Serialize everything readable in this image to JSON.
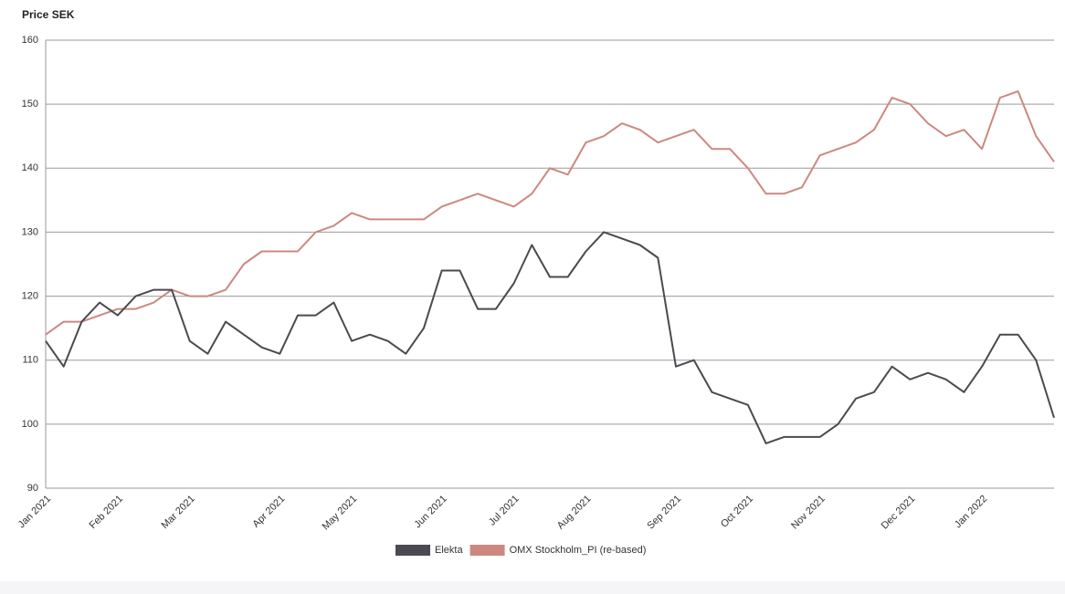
{
  "chart_data": {
    "type": "line",
    "y_axis_title": "Price SEK",
    "categories": [
      "Jan 2021",
      null,
      null,
      null,
      "Feb 2021",
      null,
      null,
      null,
      "Mar 2021",
      null,
      null,
      null,
      null,
      "Apr 2021",
      null,
      null,
      null,
      "May 2021",
      null,
      null,
      null,
      null,
      "Jun 2021",
      null,
      null,
      null,
      "Jul 2021",
      null,
      null,
      null,
      "Aug 2021",
      null,
      null,
      null,
      null,
      "Sep 2021",
      null,
      null,
      null,
      "Oct 2021",
      null,
      null,
      null,
      "Nov 2021",
      null,
      null,
      null,
      null,
      "Dec 2021",
      null,
      null,
      null,
      "Jan 2022",
      null,
      null,
      null,
      null
    ],
    "series": [
      {
        "name": "Elekta",
        "color": "#4a4a50",
        "values": [
          113,
          109,
          116,
          119,
          117,
          120,
          121,
          121,
          113,
          111,
          116,
          114,
          112,
          111,
          117,
          117,
          119,
          113,
          114,
          113,
          111,
          115,
          124,
          124,
          118,
          118,
          122,
          128,
          123,
          123,
          127,
          130,
          129,
          128,
          126,
          109,
          110,
          105,
          104,
          103,
          97,
          98,
          98,
          98,
          100,
          104,
          105,
          109,
          107,
          108,
          107,
          105,
          109,
          114,
          114,
          110,
          101
        ]
      },
      {
        "name": "OMX Stockholm_PI (re-based)",
        "color": "#cc8880",
        "values": [
          114,
          116,
          116,
          117,
          118,
          118,
          119,
          121,
          120,
          120,
          121,
          125,
          127,
          127,
          127,
          130,
          131,
          133,
          132,
          132,
          132,
          132,
          134,
          135,
          136,
          135,
          134,
          136,
          140,
          139,
          144,
          145,
          147,
          146,
          144,
          145,
          146,
          143,
          143,
          140,
          136,
          136,
          137,
          142,
          143,
          144,
          146,
          151,
          150,
          147,
          145,
          146,
          143,
          151,
          152,
          145,
          141
        ]
      }
    ],
    "ylim": [
      90,
      160
    ],
    "yticks": [
      90,
      100,
      110,
      120,
      130,
      140,
      150,
      160
    ],
    "grid": true,
    "legend": "bottom"
  }
}
